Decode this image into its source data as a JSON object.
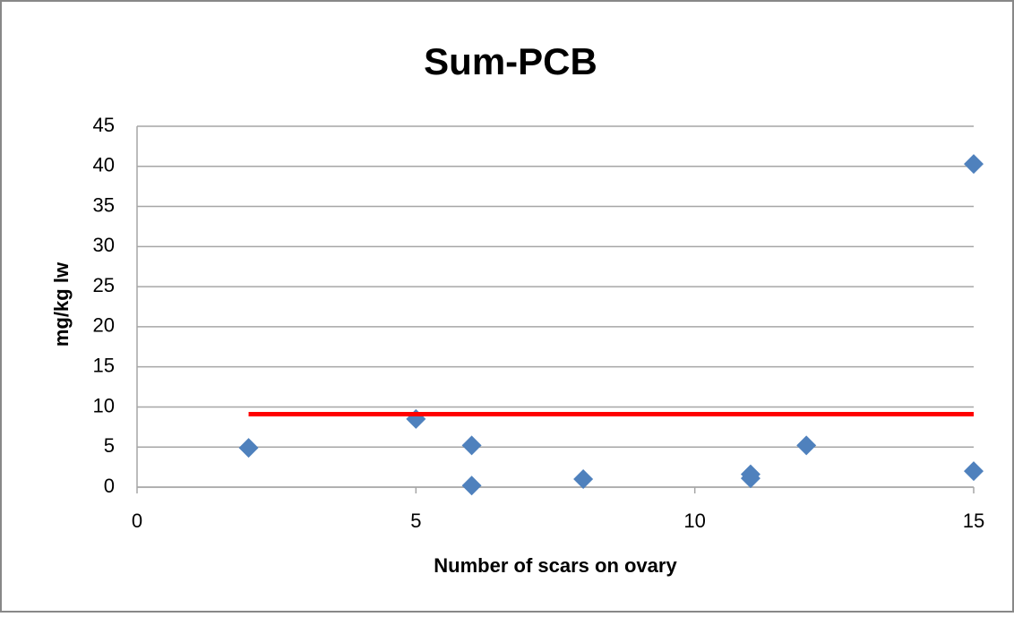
{
  "chart_data": {
    "type": "scatter",
    "title": "Sum-PCB",
    "x_label": "Number of scars on ovary",
    "y_label": "mg/kg lw",
    "xlim": [
      0,
      15
    ],
    "xticks": [
      0,
      5,
      10,
      15
    ],
    "ylim": [
      0,
      45
    ],
    "yticks": [
      0,
      5,
      10,
      15,
      20,
      25,
      30,
      35,
      40,
      45
    ],
    "grid": true,
    "series": [
      {
        "mode": "markers",
        "color": "#4f81bd",
        "x": [
          2,
          5,
          6,
          6,
          8,
          11,
          11,
          12,
          15,
          15
        ],
        "values": [
          4.9,
          8.5,
          5.2,
          0.2,
          1.0,
          1.6,
          1.1,
          5.2,
          40.3,
          2.0
        ]
      },
      {
        "mode": "line",
        "color": "#ff0000",
        "x": [
          2,
          15
        ],
        "values": [
          9.1,
          9.1
        ]
      }
    ]
  }
}
